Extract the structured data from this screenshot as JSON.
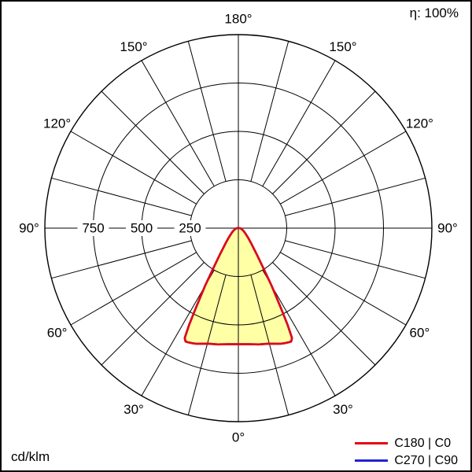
{
  "header": {
    "efficiency_label": "η: 100%"
  },
  "footer": {
    "unit_label": "cd/klm"
  },
  "legend": {
    "items": [
      {
        "label": "C180 | C0",
        "color": "#e30613"
      },
      {
        "label": "C270 | C90",
        "color": "#2323d3"
      }
    ]
  },
  "chart_data": {
    "type": "polar",
    "unit": "cd/klm",
    "efficiency": "η: 100%",
    "angle_zero": "bottom",
    "angle_tick_step": 15,
    "angle_labels": [
      0,
      30,
      60,
      90,
      120,
      150,
      180
    ],
    "deg_symbol": "°",
    "ring_values": [
      250,
      500,
      750,
      1000
    ],
    "ring_label_values": [
      750,
      500,
      250
    ],
    "rmax": 1000,
    "grid_color": "#000000",
    "curve_fill": "#ffffa6",
    "series": [
      {
        "name": "C180 | C0",
        "color": "#e30613",
        "symmetric": true,
        "gamma": [
          0,
          5,
          10,
          15,
          20,
          22,
          24,
          25,
          26,
          27,
          28,
          30,
          32,
          35,
          40,
          45,
          50,
          55,
          60,
          65,
          70,
          75,
          80,
          85,
          90
        ],
        "intensity": [
          600,
          602,
          610,
          618,
          636,
          641,
          645,
          646,
          632,
          560,
          470,
          345,
          245,
          165,
          103,
          73,
          53,
          41,
          33,
          26,
          20,
          16,
          12,
          10,
          8
        ]
      },
      {
        "name": "C270 | C90",
        "color": "#2323d3",
        "symmetric": true,
        "gamma": [
          0,
          5,
          10,
          15,
          20,
          22,
          24,
          25,
          26,
          27,
          28,
          30,
          32,
          35,
          40,
          45,
          50,
          55,
          60,
          65,
          70,
          75,
          80,
          85,
          90
        ],
        "intensity": [
          600,
          602,
          610,
          618,
          636,
          641,
          645,
          646,
          632,
          560,
          470,
          345,
          245,
          165,
          103,
          73,
          53,
          41,
          33,
          26,
          20,
          16,
          12,
          10,
          8
        ]
      }
    ]
  }
}
